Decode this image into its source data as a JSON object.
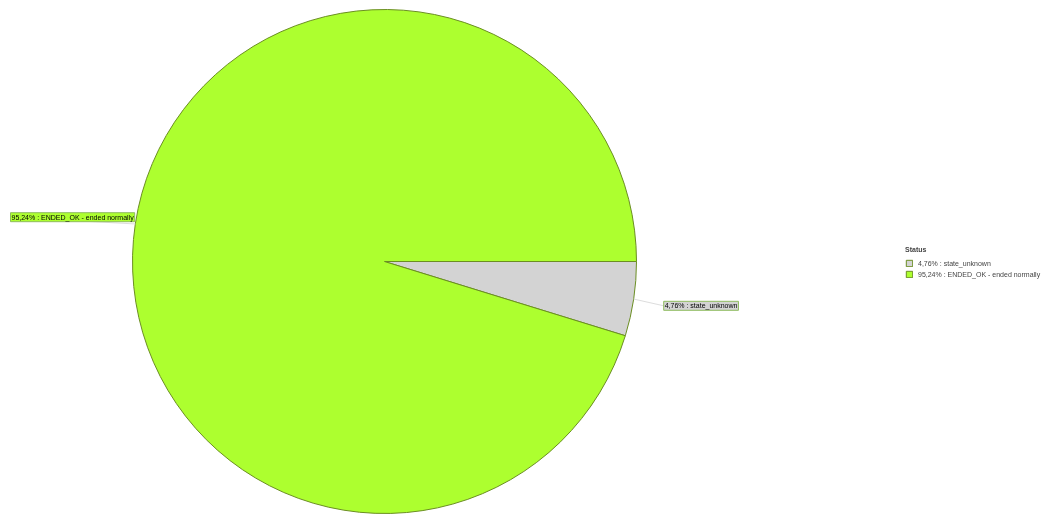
{
  "chart_data": {
    "type": "pie",
    "legend_title": "Status",
    "legend": "right",
    "categories": [
      "state_unknown",
      "ENDED_OK - ended normally"
    ],
    "values": [
      4.76,
      95.24
    ],
    "value_labels": [
      "4,76%",
      "95,24%"
    ],
    "colors": [
      "#d3d3d3",
      "#adff2f"
    ]
  }
}
